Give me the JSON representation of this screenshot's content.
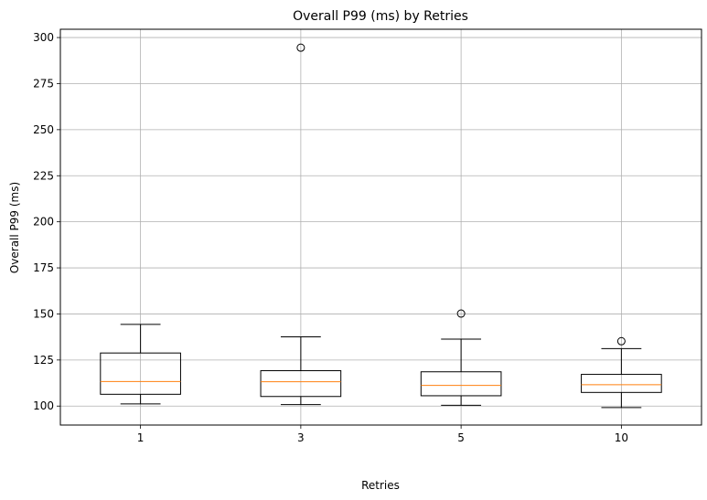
{
  "chart_data": {
    "type": "box",
    "title": "Overall P99 (ms) by Retries",
    "xlabel": "Retries",
    "ylabel": "Overall P99 (ms)",
    "categories": [
      "1",
      "3",
      "5",
      "10"
    ],
    "ylim": [
      89.7,
      304.5
    ],
    "yticks": [
      100,
      125,
      150,
      175,
      200,
      225,
      250,
      275,
      300
    ],
    "grid": true,
    "colors": {
      "box": "#000000",
      "median": "#ff7f0e",
      "grid": "#b0b0b0"
    },
    "boxes": [
      {
        "category": "1",
        "whisker_low": 101.2,
        "q1": 106.4,
        "median": 113.3,
        "q3": 128.8,
        "whisker_high": 144.3,
        "outliers": []
      },
      {
        "category": "3",
        "whisker_low": 100.8,
        "q1": 105.2,
        "median": 113.2,
        "q3": 119.2,
        "whisker_high": 137.6,
        "outliers": [
          294.5
        ]
      },
      {
        "category": "5",
        "whisker_low": 100.4,
        "q1": 105.6,
        "median": 111.2,
        "q3": 118.6,
        "whisker_high": 136.3,
        "outliers": [
          150.2
        ]
      },
      {
        "category": "10",
        "whisker_low": 99.2,
        "q1": 107.4,
        "median": 111.6,
        "q3": 117.2,
        "whisker_high": 131.2,
        "outliers": [
          135.2
        ]
      }
    ]
  }
}
